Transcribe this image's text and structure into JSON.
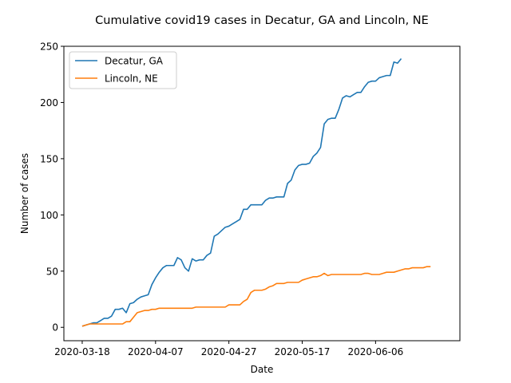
{
  "chart_data": {
    "type": "line",
    "title": "Cumulative covid19 cases in Decatur, GA and Lincoln, NE",
    "xlabel": "Date",
    "ylabel": "Number of cases",
    "x_start": "2020-03-18",
    "xlim": [
      "2020-03-13",
      "2020-06-29"
    ],
    "ylim": [
      -11.9,
      250
    ],
    "x_ticks": [
      "2020-03-18",
      "2020-04-07",
      "2020-04-27",
      "2020-05-17",
      "2020-06-06"
    ],
    "y_ticks": [
      0,
      50,
      100,
      150,
      200,
      250
    ],
    "grid": false,
    "legend": "top-left",
    "series": [
      {
        "name": "Decatur, GA",
        "color": "#1f77b4",
        "values": [
          1,
          2,
          3,
          4,
          4,
          6,
          8,
          8,
          10,
          16,
          16,
          17,
          13,
          21,
          22,
          25,
          27,
          28,
          29,
          38,
          44,
          49,
          53,
          55,
          55,
          55,
          62,
          60,
          53,
          50,
          61,
          59,
          60,
          60,
          64,
          66,
          81,
          83,
          86,
          89,
          90,
          92,
          94,
          96,
          105,
          105,
          109,
          109,
          109,
          109,
          113,
          115,
          115,
          116,
          116,
          116,
          128,
          131,
          140,
          144,
          145,
          145,
          146,
          152,
          155,
          160,
          181,
          185,
          186,
          186,
          194,
          204,
          206,
          205,
          207,
          209,
          209,
          214,
          218,
          219,
          219,
          222,
          223,
          224,
          224,
          236,
          235,
          239
        ]
      },
      {
        "name": "Lincoln, NE",
        "color": "#ff7f0e",
        "values": [
          1,
          2,
          3,
          3,
          3,
          3,
          3,
          3,
          3,
          3,
          3,
          3,
          5,
          5,
          9,
          13,
          14,
          15,
          15,
          16,
          16,
          17,
          17,
          17,
          17,
          17,
          17,
          17,
          17,
          17,
          17,
          18,
          18,
          18,
          18,
          18,
          18,
          18,
          18,
          18,
          20,
          20,
          20,
          20,
          23,
          25,
          31,
          33,
          33,
          33,
          34,
          36,
          37,
          39,
          39,
          39,
          40,
          40,
          40,
          40,
          42,
          43,
          44,
          45,
          45,
          46,
          48,
          46,
          47,
          47,
          47,
          47,
          47,
          47,
          47,
          47,
          47,
          48,
          48,
          47,
          47,
          47,
          48,
          49,
          49,
          49,
          50,
          51,
          52,
          52,
          53,
          53,
          53,
          53,
          54,
          54
        ]
      }
    ]
  }
}
